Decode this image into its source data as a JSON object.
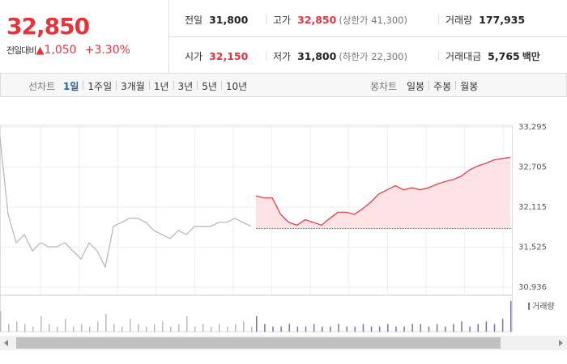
{
  "quote": {
    "price": "32,850",
    "change_label": "전일대비",
    "change": "1,050",
    "rate": "+3.30%"
  },
  "stats": [
    {
      "label": "전일",
      "value": "31,800",
      "color": "#222222"
    },
    {
      "label": "고가",
      "value": "32,850",
      "note": "(상한가 41,300)",
      "color": "#e8323c"
    },
    {
      "label": "거래량",
      "value": "177,935",
      "color": "#222222"
    },
    {
      "label": "시가",
      "value": "32,150",
      "color": "#e8323c"
    },
    {
      "label": "저가",
      "value": "31,800",
      "note": "(하한가 22,300)",
      "color": "#222222"
    },
    {
      "label": "거래대금",
      "value": "5,765",
      "unit": "백만",
      "color": "#222222"
    }
  ],
  "toolbar": {
    "line_label": "선차트",
    "line_tabs": [
      "1일",
      "1주일",
      "3개월",
      "1년",
      "3년",
      "5년",
      "10년"
    ],
    "candle_label": "봉차트",
    "candle_tabs": [
      "일봉",
      "주봉",
      "월봉"
    ]
  },
  "chart_data": {
    "type": "line",
    "ylim": [
      30936,
      33295
    ],
    "yticks": [
      {
        "value": 33295,
        "label": "33,295"
      },
      {
        "value": 32705,
        "label": "32,705"
      },
      {
        "value": 32115,
        "label": "32,115"
      },
      {
        "value": 31525,
        "label": "31,525"
      },
      {
        "value": 30936,
        "label": "30,936"
      }
    ],
    "base": 31800,
    "series": [
      {
        "color": "#b5b5b5",
        "values": [
          33140,
          32010,
          31590,
          31710,
          31470,
          31590,
          31530,
          31530,
          31590,
          31470,
          31350,
          31590,
          31470,
          31230,
          31830,
          31890,
          31950,
          31950,
          31890,
          31770,
          31710,
          31650,
          31770,
          31710,
          31830,
          31830,
          31830,
          31890,
          31890,
          31950,
          31890,
          31830
        ]
      },
      {
        "color": "#e8323c",
        "values": [
          32280,
          32250,
          32250,
          32010,
          31890,
          31850,
          31930,
          31890,
          31850,
          31950,
          32040,
          32040,
          32010,
          32090,
          32190,
          32310,
          32370,
          32430,
          32370,
          32400,
          32370,
          32400,
          32450,
          32490,
          32520,
          32570,
          32660,
          32720,
          32760,
          32810,
          32830,
          32850
        ]
      }
    ],
    "volume": {
      "name": "거래량",
      "series": [
        {
          "color": "#bbbbbb",
          "values": [
            8,
            3,
            4,
            3,
            2,
            6,
            3,
            2,
            5,
            2,
            3,
            2,
            4,
            7,
            3,
            2,
            5,
            3,
            2,
            3,
            4,
            2,
            3,
            6,
            2,
            3,
            2,
            3,
            2,
            3,
            4,
            2
          ]
        },
        {
          "color": "#7a6fb0",
          "values": [
            6,
            3,
            2,
            2,
            3,
            2,
            2,
            3,
            2,
            2,
            3,
            2,
            2,
            3,
            2,
            2,
            3,
            2,
            2,
            3,
            3,
            2,
            3,
            2,
            3,
            4,
            2,
            3,
            4,
            3,
            5,
            12
          ]
        }
      ]
    }
  }
}
